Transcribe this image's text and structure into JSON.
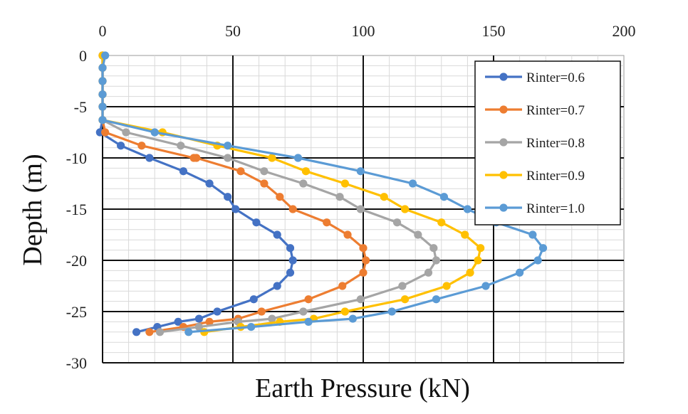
{
  "chart_data": {
    "type": "line",
    "title": "",
    "xlabel": "Earth Pressure (kN)",
    "ylabel": "Depth (m)",
    "x_axis_position": "top",
    "xlim": [
      0,
      200
    ],
    "ylim": [
      -30,
      0
    ],
    "x_ticks": [
      "0",
      "50",
      "100",
      "150",
      "200"
    ],
    "y_ticks": [
      "0",
      "-5",
      "-10",
      "-15",
      "-20",
      "-25",
      "-30"
    ],
    "grid": true,
    "legend_position": "top-right",
    "series": [
      {
        "name": "Rinter=0.6",
        "color": "#4472C4",
        "points": [
          [
            0,
            0
          ],
          [
            0,
            -1.2
          ],
          [
            0,
            -2.5
          ],
          [
            0,
            -3.8
          ],
          [
            0,
            -5.0
          ],
          [
            0,
            -6.3
          ],
          [
            -1,
            -7.5
          ],
          [
            7,
            -8.8
          ],
          [
            18,
            -10.0
          ],
          [
            31,
            -11.3
          ],
          [
            41,
            -12.5
          ],
          [
            48,
            -13.8
          ],
          [
            51,
            -15.0
          ],
          [
            59,
            -16.3
          ],
          [
            67,
            -17.5
          ],
          [
            72,
            -18.8
          ],
          [
            73,
            -20.0
          ],
          [
            72,
            -21.2
          ],
          [
            67,
            -22.5
          ],
          [
            58,
            -23.8
          ],
          [
            44,
            -25.0
          ],
          [
            37,
            -25.7
          ],
          [
            29,
            -26.0
          ],
          [
            21,
            -26.5
          ],
          [
            13,
            -27.0
          ]
        ]
      },
      {
        "name": "Rinter=0.7",
        "color": "#ED7D31",
        "points": [
          [
            0,
            0
          ],
          [
            0,
            -1.2
          ],
          [
            0,
            -2.5
          ],
          [
            0,
            -3.8
          ],
          [
            0,
            -5.0
          ],
          [
            0,
            -6.3
          ],
          [
            1,
            -7.5
          ],
          [
            15,
            -8.8
          ],
          [
            35,
            -10.0
          ],
          [
            36,
            -10.0
          ],
          [
            53,
            -11.3
          ],
          [
            62,
            -12.5
          ],
          [
            68,
            -13.8
          ],
          [
            73,
            -15.0
          ],
          [
            86,
            -16.3
          ],
          [
            94,
            -17.5
          ],
          [
            100,
            -18.8
          ],
          [
            101,
            -20.0
          ],
          [
            100,
            -21.2
          ],
          [
            92,
            -22.5
          ],
          [
            79,
            -23.8
          ],
          [
            61,
            -25.0
          ],
          [
            52,
            -25.7
          ],
          [
            41,
            -26.0
          ],
          [
            31,
            -26.5
          ],
          [
            18,
            -27.0
          ]
        ]
      },
      {
        "name": "Rinter=0.8",
        "color": "#A5A5A5",
        "points": [
          [
            0,
            0
          ],
          [
            0,
            -1.2
          ],
          [
            0,
            -2.5
          ],
          [
            0,
            -3.8
          ],
          [
            0,
            -5.0
          ],
          [
            0,
            -6.3
          ],
          [
            9,
            -7.5
          ],
          [
            30,
            -8.8
          ],
          [
            48,
            -10.0
          ],
          [
            62,
            -11.3
          ],
          [
            77,
            -12.5
          ],
          [
            91,
            -13.8
          ],
          [
            99,
            -15.0
          ],
          [
            113,
            -16.3
          ],
          [
            121,
            -17.5
          ],
          [
            127,
            -18.8
          ],
          [
            128,
            -20.0
          ],
          [
            125,
            -21.2
          ],
          [
            115,
            -22.5
          ],
          [
            99,
            -23.8
          ],
          [
            77,
            -25.0
          ],
          [
            65,
            -25.7
          ],
          [
            52,
            -26.0
          ],
          [
            37,
            -26.5
          ],
          [
            22,
            -27.0
          ]
        ]
      },
      {
        "name": "Rinter=0.9",
        "color": "#FFC000",
        "points": [
          [
            0,
            0
          ],
          [
            0,
            -1.2
          ],
          [
            0,
            -2.5
          ],
          [
            0,
            -3.8
          ],
          [
            0,
            -5.0
          ],
          [
            0,
            -6.3
          ],
          [
            23,
            -7.5
          ],
          [
            44,
            -8.8
          ],
          [
            65,
            -10.0
          ],
          [
            78,
            -11.3
          ],
          [
            93,
            -12.5
          ],
          [
            108,
            -13.8
          ],
          [
            116,
            -15.0
          ],
          [
            130,
            -16.3
          ],
          [
            139,
            -17.5
          ],
          [
            145,
            -18.8
          ],
          [
            144,
            -20.0
          ],
          [
            141,
            -21.2
          ],
          [
            132,
            -22.5
          ],
          [
            116,
            -23.8
          ],
          [
            93,
            -25.0
          ],
          [
            81,
            -25.7
          ],
          [
            68,
            -26.0
          ],
          [
            53,
            -26.5
          ],
          [
            39,
            -27.0
          ]
        ]
      },
      {
        "name": "Rinter=1.0",
        "color": "#5B9BD5",
        "points": [
          [
            1,
            0
          ],
          [
            0,
            -1.2
          ],
          [
            0,
            -2.5
          ],
          [
            0,
            -3.8
          ],
          [
            0,
            -5.0
          ],
          [
            0,
            -6.3
          ],
          [
            20,
            -7.5
          ],
          [
            48,
            -8.8
          ],
          [
            75,
            -10.0
          ],
          [
            99,
            -11.3
          ],
          [
            119,
            -12.5
          ],
          [
            131,
            -13.8
          ],
          [
            140,
            -15.0
          ],
          [
            151,
            -16.3
          ],
          [
            165,
            -17.5
          ],
          [
            169,
            -18.8
          ],
          [
            167,
            -20.0
          ],
          [
            160,
            -21.2
          ],
          [
            147,
            -22.5
          ],
          [
            128,
            -23.8
          ],
          [
            111,
            -25.0
          ],
          [
            96,
            -25.7
          ],
          [
            79,
            -26.0
          ],
          [
            57,
            -26.5
          ],
          [
            33,
            -27.0
          ]
        ]
      }
    ]
  }
}
